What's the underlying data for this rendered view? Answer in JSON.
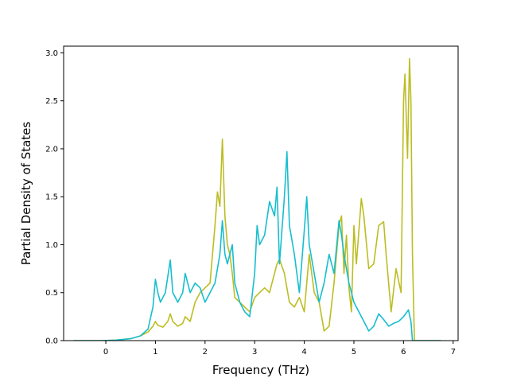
{
  "chart_data": {
    "type": "line",
    "title": "",
    "xlabel": "Frequency (THz)",
    "ylabel": "Partial Density of States",
    "xlim": [
      -0.85,
      7.1
    ],
    "ylim": [
      0.0,
      3.07
    ],
    "xticks": [
      0,
      1,
      2,
      3,
      4,
      5,
      6,
      7
    ],
    "yticks": [
      0.0,
      0.5,
      1.0,
      1.5,
      2.0,
      2.5,
      3.0
    ],
    "grid": false,
    "legend": "none",
    "series": [
      {
        "color": "#bcbd22",
        "points": [
          [
            -0.65,
            0
          ],
          [
            -0.1,
            0
          ],
          [
            0.2,
            0.005
          ],
          [
            0.5,
            0.02
          ],
          [
            0.7,
            0.05
          ],
          [
            0.85,
            0.09
          ],
          [
            0.95,
            0.15
          ],
          [
            1.0,
            0.2
          ],
          [
            1.05,
            0.16
          ],
          [
            1.15,
            0.14
          ],
          [
            1.25,
            0.2
          ],
          [
            1.3,
            0.28
          ],
          [
            1.35,
            0.2
          ],
          [
            1.45,
            0.15
          ],
          [
            1.55,
            0.18
          ],
          [
            1.6,
            0.25
          ],
          [
            1.7,
            0.2
          ],
          [
            1.8,
            0.4
          ],
          [
            1.9,
            0.5
          ],
          [
            2.0,
            0.55
          ],
          [
            2.1,
            0.6
          ],
          [
            2.2,
            1.2
          ],
          [
            2.25,
            1.55
          ],
          [
            2.3,
            1.4
          ],
          [
            2.35,
            2.1
          ],
          [
            2.4,
            1.3
          ],
          [
            2.45,
            1.0
          ],
          [
            2.5,
            0.9
          ],
          [
            2.55,
            0.7
          ],
          [
            2.6,
            0.45
          ],
          [
            2.7,
            0.4
          ],
          [
            2.8,
            0.35
          ],
          [
            2.9,
            0.3
          ],
          [
            3.0,
            0.45
          ],
          [
            3.1,
            0.5
          ],
          [
            3.2,
            0.55
          ],
          [
            3.3,
            0.5
          ],
          [
            3.35,
            0.6
          ],
          [
            3.45,
            0.8
          ],
          [
            3.5,
            0.85
          ],
          [
            3.6,
            0.7
          ],
          [
            3.7,
            0.4
          ],
          [
            3.8,
            0.35
          ],
          [
            3.9,
            0.45
          ],
          [
            4.0,
            0.3
          ],
          [
            4.1,
            0.9
          ],
          [
            4.2,
            0.5
          ],
          [
            4.3,
            0.4
          ],
          [
            4.4,
            0.1
          ],
          [
            4.5,
            0.15
          ],
          [
            4.6,
            0.6
          ],
          [
            4.7,
            1.2
          ],
          [
            4.75,
            1.3
          ],
          [
            4.8,
            0.7
          ],
          [
            4.85,
            1.1
          ],
          [
            4.9,
            0.55
          ],
          [
            4.95,
            0.3
          ],
          [
            5.0,
            1.2
          ],
          [
            5.05,
            0.8
          ],
          [
            5.15,
            1.48
          ],
          [
            5.2,
            1.3
          ],
          [
            5.3,
            0.75
          ],
          [
            5.4,
            0.8
          ],
          [
            5.5,
            1.2
          ],
          [
            5.6,
            1.24
          ],
          [
            5.65,
            0.9
          ],
          [
            5.75,
            0.3
          ],
          [
            5.85,
            0.75
          ],
          [
            5.95,
            0.5
          ],
          [
            6.0,
            2.5
          ],
          [
            6.03,
            2.78
          ],
          [
            6.08,
            1.9
          ],
          [
            6.12,
            2.94
          ],
          [
            6.15,
            2.5
          ],
          [
            6.18,
            0.9
          ],
          [
            6.22,
            0
          ],
          [
            6.75,
            0
          ]
        ]
      },
      {
        "color": "#17becf",
        "points": [
          [
            -0.65,
            0
          ],
          [
            -0.1,
            0
          ],
          [
            0.2,
            0.005
          ],
          [
            0.5,
            0.02
          ],
          [
            0.7,
            0.05
          ],
          [
            0.85,
            0.12
          ],
          [
            0.95,
            0.35
          ],
          [
            1.0,
            0.64
          ],
          [
            1.05,
            0.5
          ],
          [
            1.1,
            0.4
          ],
          [
            1.2,
            0.5
          ],
          [
            1.3,
            0.84
          ],
          [
            1.35,
            0.5
          ],
          [
            1.45,
            0.4
          ],
          [
            1.55,
            0.5
          ],
          [
            1.6,
            0.7
          ],
          [
            1.7,
            0.5
          ],
          [
            1.8,
            0.6
          ],
          [
            1.9,
            0.55
          ],
          [
            2.0,
            0.4
          ],
          [
            2.1,
            0.5
          ],
          [
            2.2,
            0.6
          ],
          [
            2.3,
            0.9
          ],
          [
            2.35,
            1.25
          ],
          [
            2.4,
            0.9
          ],
          [
            2.45,
            0.8
          ],
          [
            2.55,
            1.0
          ],
          [
            2.6,
            0.6
          ],
          [
            2.7,
            0.4
          ],
          [
            2.8,
            0.3
          ],
          [
            2.9,
            0.25
          ],
          [
            3.0,
            0.7
          ],
          [
            3.05,
            1.2
          ],
          [
            3.1,
            1.0
          ],
          [
            3.2,
            1.1
          ],
          [
            3.3,
            1.45
          ],
          [
            3.4,
            1.3
          ],
          [
            3.45,
            1.6
          ],
          [
            3.5,
            0.8
          ],
          [
            3.6,
            1.5
          ],
          [
            3.65,
            1.97
          ],
          [
            3.7,
            1.2
          ],
          [
            3.8,
            0.9
          ],
          [
            3.9,
            0.5
          ],
          [
            4.0,
            1.15
          ],
          [
            4.05,
            1.5
          ],
          [
            4.1,
            1.0
          ],
          [
            4.2,
            0.7
          ],
          [
            4.3,
            0.4
          ],
          [
            4.4,
            0.6
          ],
          [
            4.5,
            0.9
          ],
          [
            4.6,
            0.7
          ],
          [
            4.7,
            1.25
          ],
          [
            4.75,
            1.1
          ],
          [
            4.8,
            0.9
          ],
          [
            4.9,
            0.6
          ],
          [
            4.95,
            0.5
          ],
          [
            5.0,
            0.4
          ],
          [
            5.1,
            0.3
          ],
          [
            5.2,
            0.2
          ],
          [
            5.3,
            0.1
          ],
          [
            5.4,
            0.15
          ],
          [
            5.5,
            0.28
          ],
          [
            5.6,
            0.22
          ],
          [
            5.7,
            0.15
          ],
          [
            5.8,
            0.18
          ],
          [
            5.9,
            0.2
          ],
          [
            6.0,
            0.25
          ],
          [
            6.1,
            0.32
          ],
          [
            6.15,
            0.2
          ],
          [
            6.18,
            0
          ],
          [
            6.75,
            0
          ]
        ]
      }
    ]
  }
}
